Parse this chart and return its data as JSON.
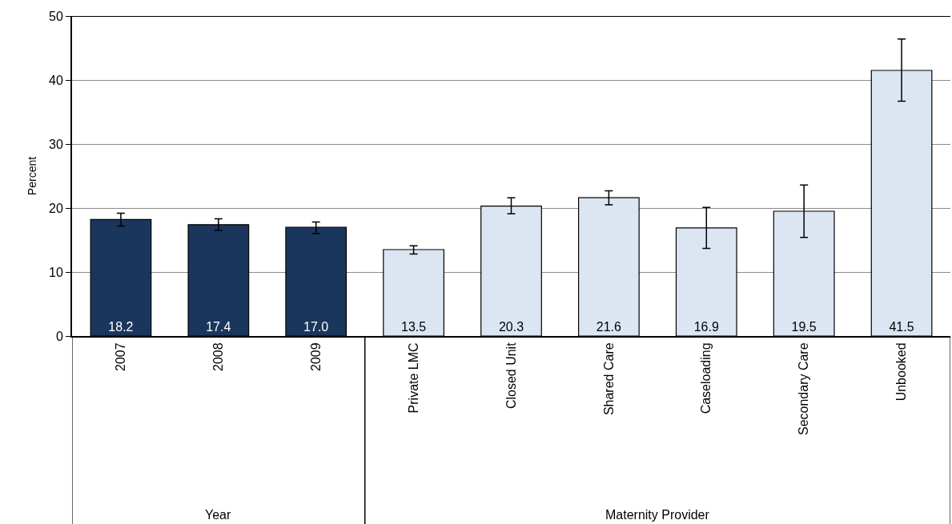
{
  "chart_data": {
    "type": "bar",
    "ylabel": "Percent",
    "categories": [
      "2007",
      "2008",
      "2009",
      "Private LMC",
      "Closed Unit",
      "Shared Care",
      "Caseloading",
      "Secondary Care",
      "Unbooked"
    ],
    "values": [
      18.2,
      17.4,
      17.0,
      13.5,
      20.3,
      21.6,
      16.9,
      19.5,
      41.5
    ],
    "colors": [
      "#1b365d",
      "#1b365d",
      "#1b365d",
      "#dce6f2",
      "#dce6f2",
      "#dce6f2",
      "#dce6f2",
      "#dce6f2",
      "#dce6f2"
    ],
    "errors": [
      [
        17.2,
        19.2
      ],
      [
        16.5,
        18.3
      ],
      [
        16.0,
        17.8
      ],
      [
        12.8,
        14.1
      ],
      [
        19.1,
        21.6
      ],
      [
        20.5,
        22.7
      ],
      [
        13.7,
        20.1
      ],
      [
        15.4,
        23.6
      ],
      [
        36.7,
        46.4
      ]
    ],
    "value_labels": [
      "18.2",
      "17.4",
      "17.0",
      "13.5",
      "20.3",
      "21.6",
      "16.9",
      "19.5",
      "41.5"
    ],
    "ylim": [
      0,
      50
    ],
    "yticks": [
      0,
      10,
      20,
      30,
      40,
      50
    ],
    "grid": "y",
    "legend": false,
    "annotations": [
      "Year",
      "Maternity Provider"
    ]
  }
}
